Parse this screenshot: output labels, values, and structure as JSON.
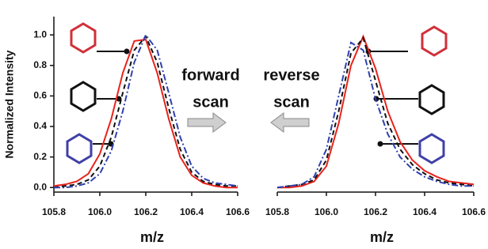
{
  "chart_data": [
    {
      "type": "line",
      "ylabel": "Normalized Intensity",
      "xlabel": "m/z",
      "annotation": [
        "forward",
        "scan"
      ],
      "x": [
        105.8,
        105.85,
        105.9,
        105.95,
        106.0,
        106.05,
        106.1,
        106.15,
        106.2,
        106.25,
        106.3,
        106.35,
        106.4,
        106.45,
        106.5,
        106.55,
        106.6
      ],
      "series": [
        {
          "color": "#e8231c",
          "dash": "solid",
          "values": [
            0.01,
            0.02,
            0.04,
            0.09,
            0.22,
            0.45,
            0.75,
            0.96,
            0.97,
            0.75,
            0.45,
            0.2,
            0.08,
            0.03,
            0.01,
            0.0,
            0.0
          ]
        },
        {
          "color": "#111111",
          "dash": "dash",
          "values": [
            0.0,
            0.01,
            0.02,
            0.05,
            0.14,
            0.33,
            0.62,
            0.9,
            0.99,
            0.82,
            0.52,
            0.25,
            0.1,
            0.04,
            0.02,
            0.01,
            0.01
          ]
        },
        {
          "color": "#3040b0",
          "dash": "dashdot",
          "values": [
            0.0,
            0.0,
            0.01,
            0.03,
            0.09,
            0.24,
            0.5,
            0.82,
            1.0,
            0.9,
            0.62,
            0.33,
            0.14,
            0.06,
            0.03,
            0.02,
            0.01
          ]
        }
      ],
      "xlim": [
        105.8,
        106.6
      ],
      "xticks": [
        105.8,
        {
          "value": 106,
          "label": "106.0"
        },
        106.2,
        106.4,
        106.6
      ],
      "ylim": [
        -0.03,
        1.12
      ],
      "yticks": [
        {
          "value": 0,
          "label": "0.0"
        },
        0.2,
        0.4,
        0.6,
        0.8,
        {
          "value": 1,
          "label": "1.0"
        }
      ]
    },
    {
      "type": "line",
      "xlabel": "m/z",
      "annotation": [
        "reverse",
        "scan"
      ],
      "x": [
        105.8,
        105.85,
        105.9,
        105.95,
        106.0,
        106.05,
        106.1,
        106.15,
        106.2,
        106.25,
        106.3,
        106.35,
        106.4,
        106.45,
        106.5,
        106.55,
        106.6
      ],
      "series": [
        {
          "color": "#e8231c",
          "dash": "solid",
          "values": [
            0.0,
            0.0,
            0.01,
            0.04,
            0.14,
            0.42,
            0.8,
            0.99,
            0.78,
            0.5,
            0.3,
            0.18,
            0.11,
            0.07,
            0.04,
            0.03,
            0.02
          ]
        },
        {
          "color": "#111111",
          "dash": "dash",
          "values": [
            0.0,
            0.01,
            0.02,
            0.05,
            0.18,
            0.5,
            0.88,
            0.98,
            0.7,
            0.42,
            0.25,
            0.15,
            0.09,
            0.05,
            0.03,
            0.02,
            0.01
          ]
        },
        {
          "color": "#3040b0",
          "dash": "dashdot",
          "values": [
            0.0,
            0.01,
            0.02,
            0.07,
            0.25,
            0.6,
            0.95,
            0.9,
            0.58,
            0.35,
            0.2,
            0.12,
            0.07,
            0.04,
            0.02,
            0.01,
            0.01
          ]
        }
      ],
      "xlim": [
        105.8,
        106.6
      ],
      "xticks": [
        105.8,
        {
          "value": 106,
          "label": "106.0"
        },
        106.2,
        106.4,
        106.6
      ],
      "ylim": [
        -0.03,
        1.12
      ]
    }
  ]
}
